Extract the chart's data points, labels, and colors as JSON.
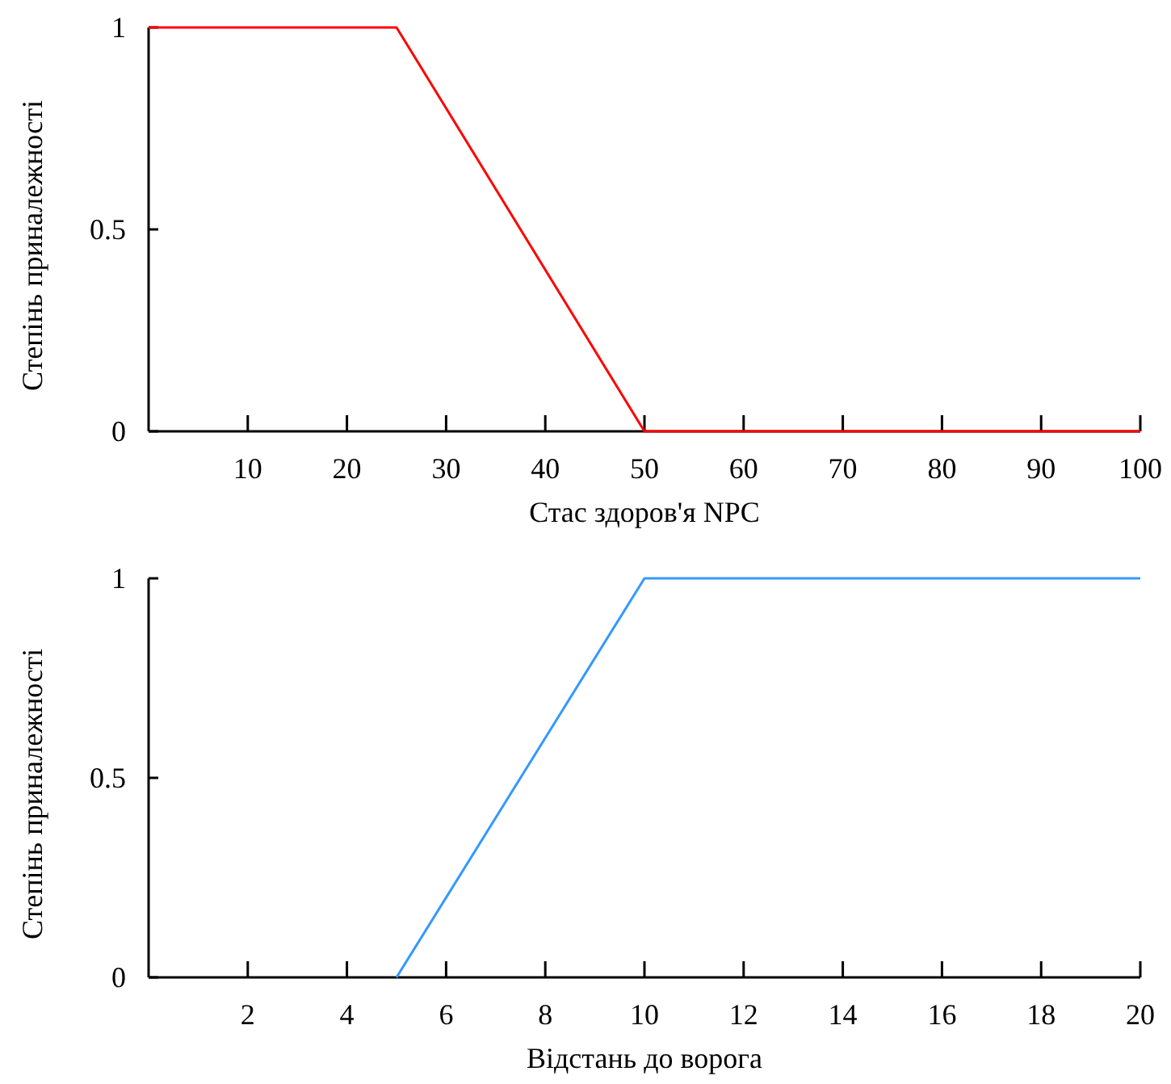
{
  "chart_data": [
    {
      "type": "line",
      "xlabel": "Стас здоров'я NPC",
      "ylabel": "Степінь приналежності",
      "x": [
        0,
        25,
        50,
        100
      ],
      "series": [
        {
          "color": "#ff0000",
          "values": [
            1,
            1,
            0,
            0
          ]
        }
      ],
      "xlim": [
        0,
        100
      ],
      "ylim": [
        0,
        1
      ],
      "xticks": [
        10,
        20,
        30,
        40,
        50,
        60,
        70,
        80,
        90,
        100
      ],
      "yticks": [
        0,
        0.5,
        1
      ],
      "grid": false
    },
    {
      "type": "line",
      "xlabel": "Відстань до ворога",
      "ylabel": "Степінь приналежності",
      "x": [
        5,
        10,
        20
      ],
      "series": [
        {
          "color": "#3399ff",
          "values": [
            0,
            1,
            1
          ]
        }
      ],
      "xlim": [
        0,
        20
      ],
      "ylim": [
        0,
        1
      ],
      "xticks": [
        2,
        4,
        6,
        8,
        10,
        12,
        14,
        16,
        18,
        20
      ],
      "yticks": [
        0,
        0.5,
        1
      ],
      "grid": false
    }
  ]
}
